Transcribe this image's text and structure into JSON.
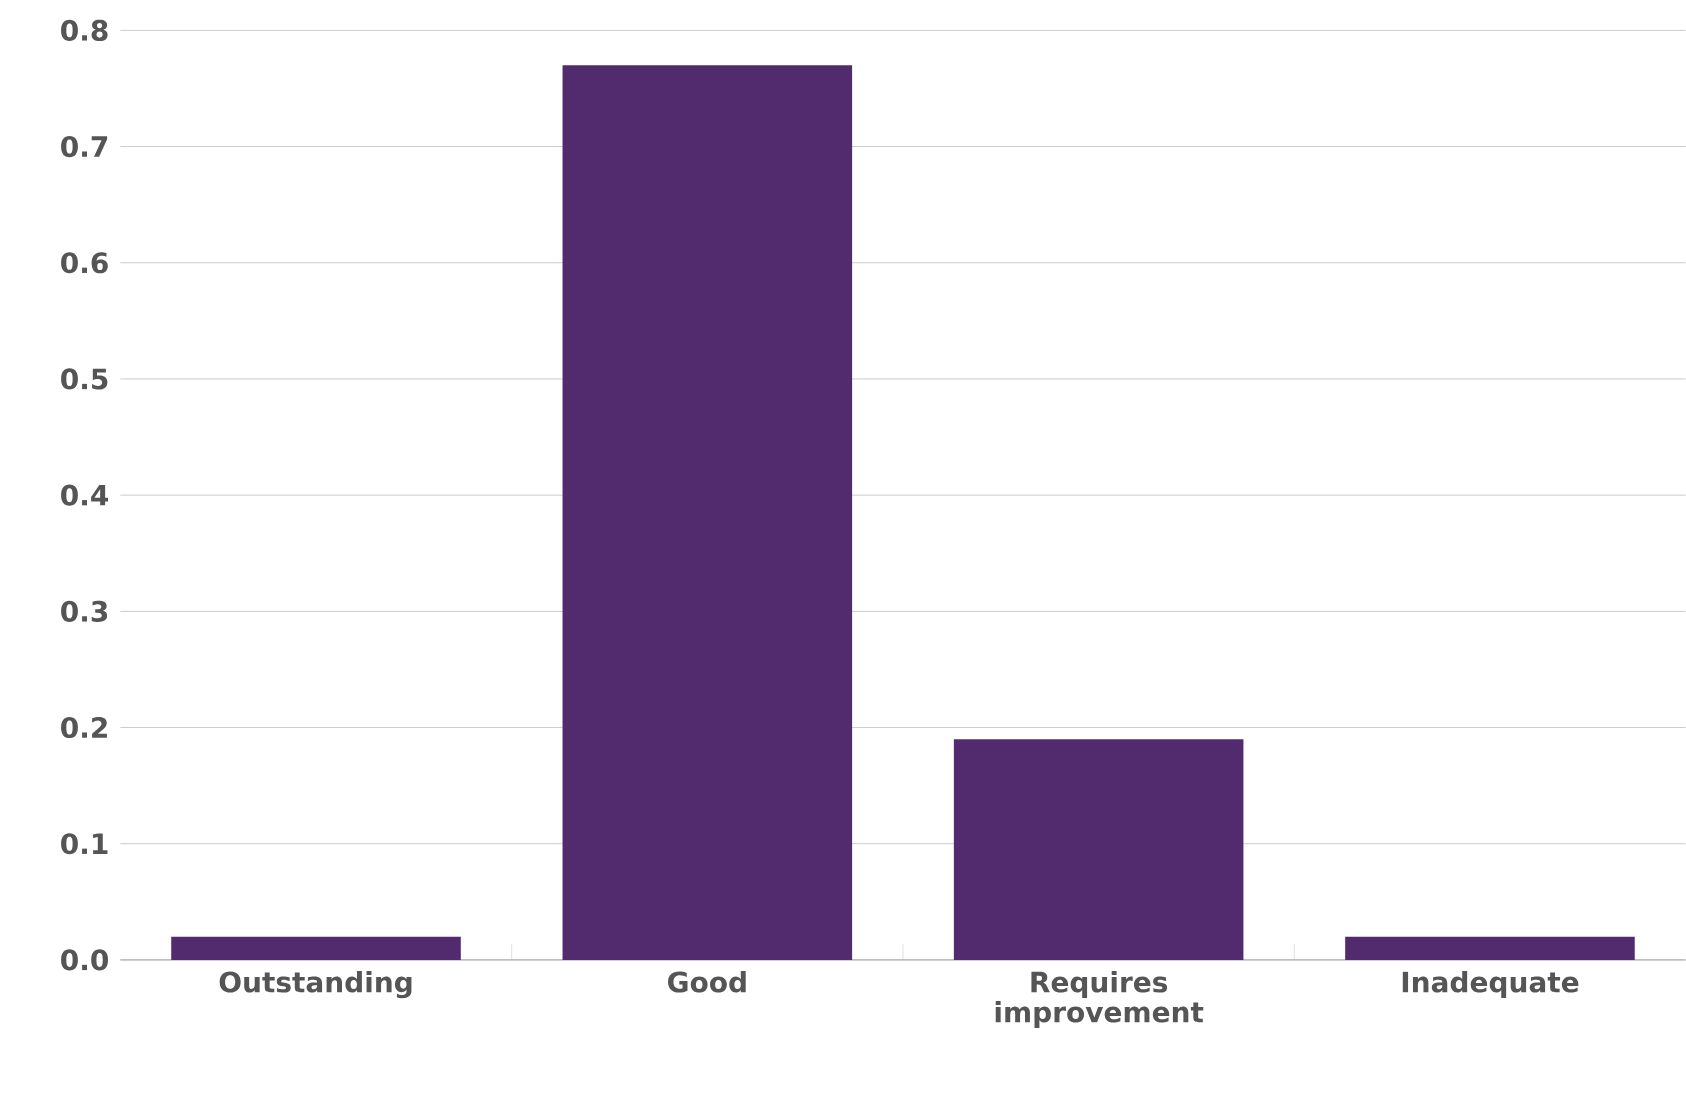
{
  "chart_data": {
    "type": "bar",
    "categories": [
      "Outstanding",
      "Good",
      "Requires improvement",
      "Inadequate"
    ],
    "values": [
      0.02,
      0.77,
      0.19,
      0.02
    ],
    "color": "#522a6e",
    "ylim": [
      0,
      0.8
    ],
    "yticks": [
      {
        "value": 0,
        "label": "0.0"
      },
      0.1,
      0.2,
      0.3,
      0.4,
      0.5,
      0.6,
      0.7,
      0.8
    ],
    "grid": "y"
  }
}
